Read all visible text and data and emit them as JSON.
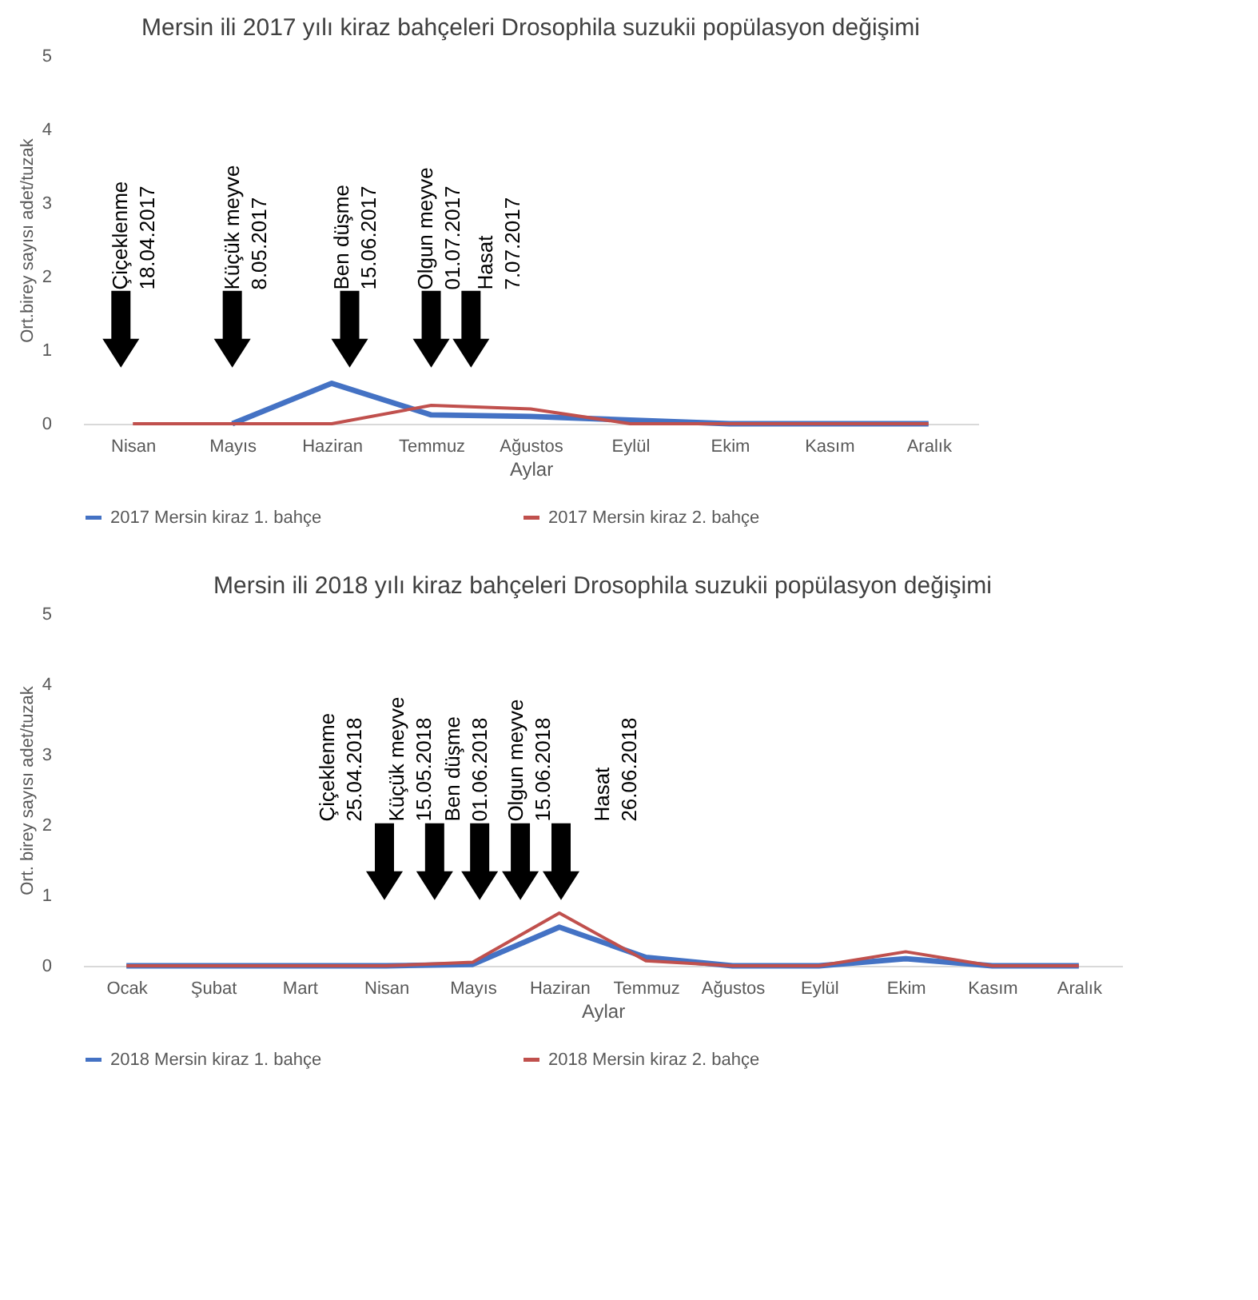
{
  "chart_data": [
    {
      "type": "line",
      "title": "Mersin ili 2017 yılı kiraz bahçeleri Drosophila suzukii popülasyon değişimi",
      "xlabel": "Aylar",
      "ylabel": "Ort.birey sayısı adet/tuzak",
      "categories": [
        "Nisan",
        "Mayıs",
        "Haziran",
        "Temmuz",
        "Ağustos",
        "Eylül",
        "Ekim",
        "Kasım",
        "Aralık"
      ],
      "series": [
        {
          "name": "2017 Mersin kiraz 1. bahçe",
          "color": "#4472c4",
          "values": [
            null,
            0,
            0.55,
            0.12,
            0.1,
            0.05,
            0,
            0,
            0
          ]
        },
        {
          "name": "2017 Mersin kiraz 2. bahçe",
          "color": "#c0504d",
          "values": [
            0,
            0,
            0,
            0.25,
            0.2,
            0,
            0,
            0,
            0
          ]
        }
      ],
      "ylim": [
        0,
        5
      ],
      "yticks": [
        0,
        1,
        2,
        3,
        4,
        5
      ],
      "grid": false,
      "legend": "bottom",
      "annotations": [
        "Çiçeklenme\n18.04.2017",
        "Küçük meyve\n8.05.2017",
        "Ben düşme\n15.06.2017",
        "Olgun meyve\n01.07.2017",
        "Hasat\n7.07.2017"
      ]
    },
    {
      "type": "line",
      "title": "Mersin ili 2018 yılı kiraz bahçeleri Drosophila suzukii popülasyon değişimi",
      "xlabel": "Aylar",
      "ylabel": "Ort. birey sayısı adet/tuzak",
      "categories": [
        "Ocak",
        "Şubat",
        "Mart",
        "Nisan",
        "Mayıs",
        "Haziran",
        "Temmuz",
        "Ağustos",
        "Eylül",
        "Ekim",
        "Kasım",
        "Aralık"
      ],
      "series": [
        {
          "name": "2018 Mersin kiraz 1. bahçe",
          "color": "#4472c4",
          "values": [
            0,
            0,
            0,
            0,
            0.02,
            0.55,
            0.12,
            0,
            0,
            0.1,
            0,
            0
          ]
        },
        {
          "name": "2018 Mersin kiraz 2. bahçe",
          "color": "#c0504d",
          "values": [
            0,
            0,
            0,
            0,
            0.05,
            0.75,
            0.07,
            0,
            0,
            0.2,
            0,
            0
          ]
        }
      ],
      "ylim": [
        0,
        5
      ],
      "yticks": [
        0,
        1,
        2,
        3,
        4,
        5
      ],
      "grid": false,
      "legend": "bottom",
      "annotations": [
        "Çiçeklenme\n25.04.2018",
        "Küçük meyve\n15.05.2018",
        "Ben düşme\n01.06.2018",
        "Olgun meyve\n15.06.2018",
        "Hasat\n26.06.2018"
      ]
    }
  ]
}
